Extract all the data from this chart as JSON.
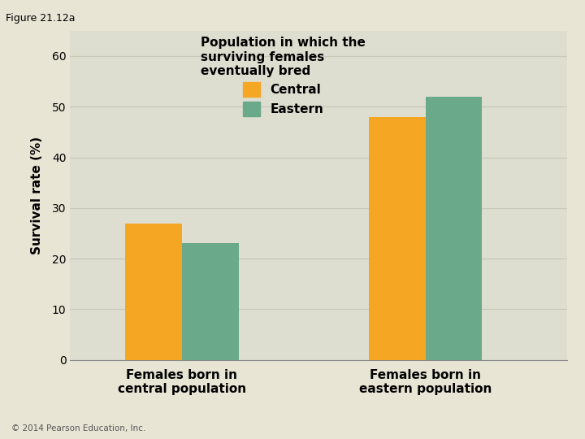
{
  "figure_label": "Figure 21.12a",
  "copyright": "© 2014 Pearson Education, Inc.",
  "ylabel": "Survival rate (%)",
  "ylim": [
    0,
    65
  ],
  "yticks": [
    0,
    10,
    20,
    30,
    40,
    50,
    60
  ],
  "categories": [
    "Females born in\ncentral population",
    "Females born in\neastern population"
  ],
  "central_values": [
    27.0,
    48.0
  ],
  "eastern_values": [
    23.0,
    52.0
  ],
  "central_color": "#F5A623",
  "eastern_color": "#6AAA8A",
  "bar_width": 0.28,
  "legend_title": "Population in which the\nsurviving females\neventually bred",
  "legend_central": "Central",
  "legend_eastern": "Eastern",
  "background_color": "#E8E5D5",
  "plot_bg_color": "#DDDDD0",
  "title_fontsize": 11,
  "axis_fontsize": 11,
  "tick_fontsize": 10,
  "legend_fontsize": 11,
  "grid_color": "#C8C8B8"
}
